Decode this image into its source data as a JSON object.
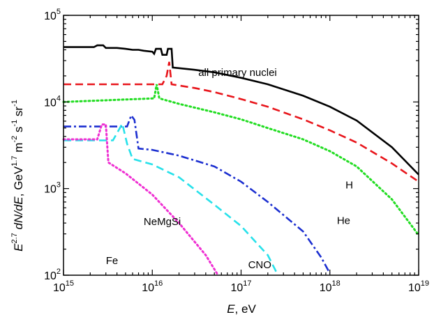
{
  "chart_data": {
    "type": "line",
    "x_scale": "log",
    "y_scale": "log",
    "xlim": [
      1000000000000000.0,
      1e+19
    ],
    "ylim": [
      100,
      100000
    ],
    "grid": false,
    "xlabel": {
      "var": "E",
      "rest": ", eV"
    },
    "ylabel": {
      "parts": [
        "E",
        "2.7",
        " dN/dE",
        ", GeV",
        "1.7",
        " m",
        "-2",
        " s",
        "-1",
        " sr",
        "-1"
      ]
    },
    "x_ticks": [
      {
        "value": 1000000000000000.0,
        "base": "10",
        "exp": "15"
      },
      {
        "value": 1e+16,
        "base": "10",
        "exp": "16"
      },
      {
        "value": 1e+17,
        "base": "10",
        "exp": "17"
      },
      {
        "value": 1e+18,
        "base": "10",
        "exp": "18"
      },
      {
        "value": 1e+19,
        "base": "10",
        "exp": "19"
      }
    ],
    "y_ticks": [
      {
        "value": 100,
        "base": "10",
        "exp": "2"
      },
      {
        "value": 1000,
        "base": "10",
        "exp": "3"
      },
      {
        "value": 10000,
        "base": "10",
        "exp": "4"
      },
      {
        "value": 100000,
        "base": "10",
        "exp": "5"
      }
    ],
    "series": [
      {
        "name": "all primary nuclei",
        "color": "#000000",
        "dash": "solid",
        "points": [
          [
            1000000000000000.0,
            43000
          ],
          [
            2200000000000000.0,
            43000
          ],
          [
            2400000000000000.0,
            45000
          ],
          [
            2800000000000000.0,
            45000
          ],
          [
            3000000000000000.0,
            42000
          ],
          [
            4000000000000000.0,
            42000
          ],
          [
            5000000000000000.0,
            41000
          ],
          [
            6000000000000000.0,
            40000
          ],
          [
            7000000000000000.0,
            40000
          ],
          [
            8000000000000000.0,
            39000
          ],
          [
            1e+16,
            38000
          ],
          [
            1.05e+16,
            36000
          ],
          [
            1.1e+16,
            41000
          ],
          [
            1.25e+16,
            41000
          ],
          [
            1.3e+16,
            35000
          ],
          [
            1.45e+16,
            35000
          ],
          [
            1.5e+16,
            41000
          ],
          [
            1.65e+16,
            41000
          ],
          [
            1.7e+16,
            25000
          ],
          [
            3e+16,
            23500
          ],
          [
            5e+16,
            22000
          ],
          [
            1e+17,
            19000
          ],
          [
            2e+17,
            16000
          ],
          [
            5e+17,
            11800
          ],
          [
            1e+18,
            8800
          ],
          [
            2e+18,
            6100
          ],
          [
            5e+18,
            3000
          ],
          [
            1e+19,
            1450
          ]
        ]
      },
      {
        "name": "H",
        "color": "#e8151b",
        "dash": "dashed",
        "points": [
          [
            1000000000000000.0,
            16000
          ],
          [
            1.3e+16,
            16000
          ],
          [
            1.45e+16,
            20000
          ],
          [
            1.55e+16,
            29000
          ],
          [
            1.65e+16,
            16000
          ],
          [
            3e+16,
            14500
          ],
          [
            5e+16,
            13000
          ],
          [
            1e+17,
            10800
          ],
          [
            2e+17,
            8800
          ],
          [
            5e+17,
            6300
          ],
          [
            1e+18,
            4700
          ],
          [
            2e+18,
            3400
          ],
          [
            5e+18,
            1950
          ],
          [
            1e+19,
            1200
          ]
        ]
      },
      {
        "name": "He",
        "color": "#22dd22",
        "dash": "dotted",
        "points": [
          [
            1000000000000000.0,
            10000
          ],
          [
            1.05e+16,
            11000
          ],
          [
            1.12e+16,
            16000
          ],
          [
            1.2e+16,
            11000
          ],
          [
            2e+16,
            9500
          ],
          [
            5e+16,
            7600
          ],
          [
            1e+17,
            6300
          ],
          [
            2e+17,
            5000
          ],
          [
            5e+17,
            3700
          ],
          [
            1e+18,
            2700
          ],
          [
            2e+18,
            1800
          ],
          [
            5e+18,
            750
          ],
          [
            1e+19,
            290
          ]
        ]
      },
      {
        "name": "CNO",
        "color": "#1c2fd0",
        "dash": "dashdot",
        "points": [
          [
            1000000000000000.0,
            5200
          ],
          [
            5200000000000000.0,
            5200
          ],
          [
            5800000000000000.0,
            7000
          ],
          [
            6300000000000000.0,
            6200
          ],
          [
            7000000000000000.0,
            2900
          ],
          [
            1e+16,
            2800
          ],
          [
            2e+16,
            2400
          ],
          [
            5e+16,
            1800
          ],
          [
            1e+17,
            1200
          ],
          [
            2e+17,
            700
          ],
          [
            5e+17,
            320
          ],
          [
            8e+17,
            160
          ],
          [
            1e+18,
            105
          ]
        ]
      },
      {
        "name": "NeMgSi",
        "color": "#27e1ea",
        "dash": "dashed",
        "points": [
          [
            1000000000000000.0,
            3600
          ],
          [
            3600000000000000.0,
            3600
          ],
          [
            4600000000000000.0,
            5600
          ],
          [
            5200000000000000.0,
            3300
          ],
          [
            6000000000000000.0,
            2200
          ],
          [
            1e+16,
            1900
          ],
          [
            2e+16,
            1350
          ],
          [
            5e+16,
            650
          ],
          [
            1e+17,
            370
          ],
          [
            2e+17,
            170
          ],
          [
            2.6e+17,
            100
          ]
        ]
      },
      {
        "name": "Fe",
        "color": "#ef2fd2",
        "dash": "dotted",
        "points": [
          [
            1000000000000000.0,
            3700
          ],
          [
            2400000000000000.0,
            3700
          ],
          [
            2700000000000000.0,
            5500
          ],
          [
            3000000000000000.0,
            5500
          ],
          [
            3200000000000000.0,
            2000
          ],
          [
            5000000000000000.0,
            1500
          ],
          [
            1e+16,
            850
          ],
          [
            2e+16,
            400
          ],
          [
            4e+16,
            170
          ],
          [
            5.5e+16,
            100
          ]
        ]
      }
    ],
    "annotations": [
      {
        "text": "all primary nuclei",
        "x": 3.3e+16,
        "y": 20000
      },
      {
        "text": "H",
        "x": 1.5e+18,
        "y": 1000
      },
      {
        "text": "He",
        "x": 1.2e+18,
        "y": 390
      },
      {
        "text": "CNO",
        "x": 1.2e+17,
        "y": 120
      },
      {
        "text": "NeMgSi",
        "x": 8000000000000000.0,
        "y": 380
      },
      {
        "text": "Fe",
        "x": 3000000000000000.0,
        "y": 135
      }
    ]
  }
}
